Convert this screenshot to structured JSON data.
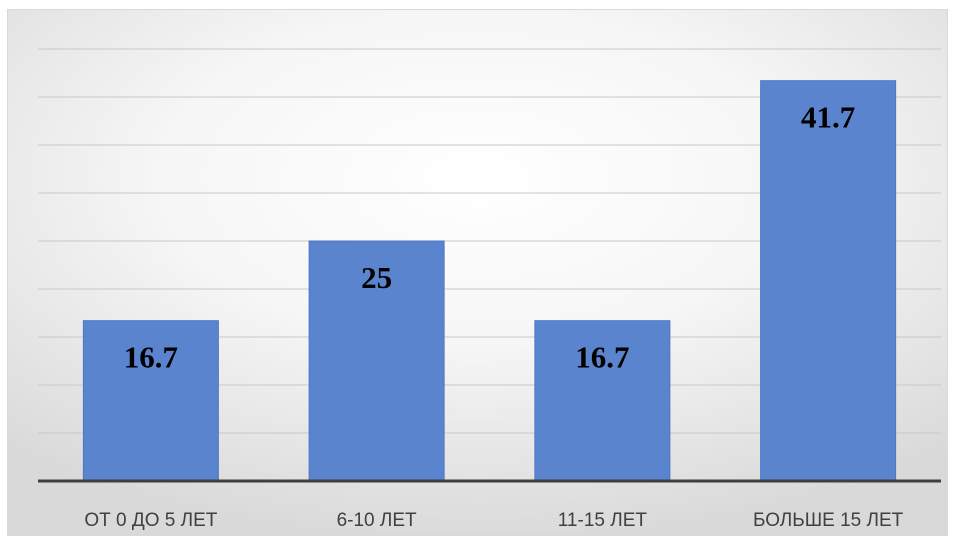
{
  "chart_data": {
    "type": "bar",
    "categories": [
      "ОТ 0 ДО 5 ЛЕТ",
      "6-10 ЛЕТ",
      "11-15 ЛЕТ",
      "БОЛЬШЕ 15 ЛЕТ"
    ],
    "values": [
      16.7,
      25,
      16.7,
      41.7
    ],
    "data_labels": [
      "16.7",
      "25",
      "16.7",
      "41.7"
    ],
    "title": "",
    "xlabel": "",
    "ylabel": "",
    "ylim": [
      0,
      45
    ],
    "grid": true,
    "legend": "none",
    "colors": {
      "bar": "#5b84cf",
      "bar_edge": "#4e77c4",
      "gridline": "#c8c8c8",
      "axis": "#3f3f3f"
    }
  }
}
